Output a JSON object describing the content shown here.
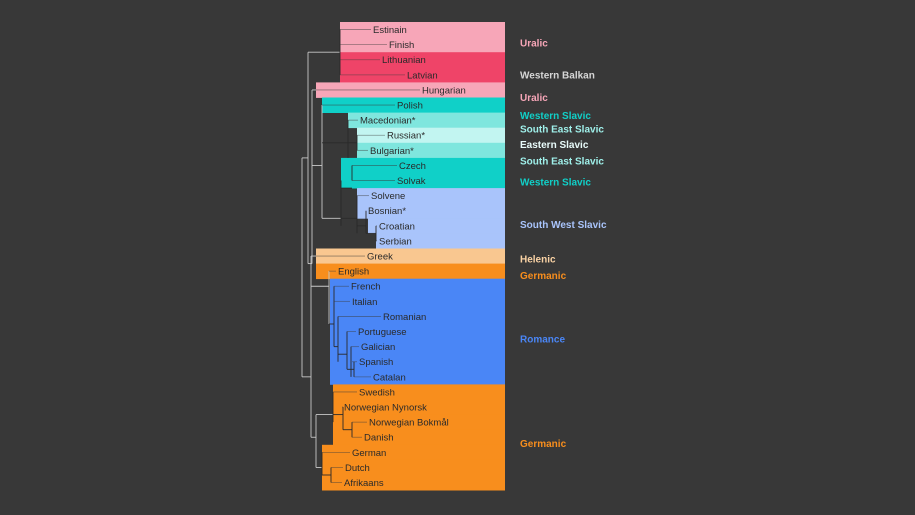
{
  "leaves": [
    {
      "name": "Estinain",
      "color": "#f7a6b8"
    },
    {
      "name": "Finish",
      "color": "#f7a6b8"
    },
    {
      "name": "Lithuanian",
      "color": "#ef4468"
    },
    {
      "name": "Latvian",
      "color": "#ef4468"
    },
    {
      "name": "Hungarian",
      "color": "#f7a6b8"
    },
    {
      "name": "Polish",
      "color": "#10d0c8"
    },
    {
      "name": "Macedonian*",
      "color": "#7fe6de"
    },
    {
      "name": "Russian*",
      "color": "#c2f5f1"
    },
    {
      "name": "Bulgarian*",
      "color": "#7fe6de"
    },
    {
      "name": "Czech",
      "color": "#10d0c8"
    },
    {
      "name": "Solvak",
      "color": "#10d0c8"
    },
    {
      "name": "Solvene",
      "color": "#a9c4fb"
    },
    {
      "name": "Bosnian*",
      "color": "#a9c4fb"
    },
    {
      "name": "Croatian",
      "color": "#a9c4fb"
    },
    {
      "name": "Serbian",
      "color": "#a9c4fb"
    },
    {
      "name": "Greek",
      "color": "#f9c790"
    },
    {
      "name": "English",
      "color": "#f88e1d"
    },
    {
      "name": "French",
      "color": "#4a86f6"
    },
    {
      "name": "Italian",
      "color": "#4a86f6"
    },
    {
      "name": "Romanian",
      "color": "#4a86f6"
    },
    {
      "name": "Portuguese",
      "color": "#4a86f6"
    },
    {
      "name": "Galician",
      "color": "#4a86f6"
    },
    {
      "name": "Spanish",
      "color": "#4a86f6"
    },
    {
      "name": "Catalan",
      "color": "#4a86f6"
    },
    {
      "name": "Swedish",
      "color": "#f88e1d"
    },
    {
      "name": "Norwegian Nynorsk",
      "color": "#f88e1d"
    },
    {
      "name": "Norwegian Bokmål",
      "color": "#f88e1d"
    },
    {
      "name": "Danish",
      "color": "#f88e1d"
    },
    {
      "name": "German",
      "color": "#f88e1d"
    },
    {
      "name": "Dutch",
      "color": "#f88e1d"
    },
    {
      "name": "Afrikaans",
      "color": "#f88e1d"
    }
  ],
  "groups": [
    {
      "label": "Uralic",
      "color": "#f7a6b8"
    },
    {
      "label": "Western Balkan",
      "color": "#d6d6d6"
    },
    {
      "label": "Uralic",
      "color": "#f7a6b8"
    },
    {
      "label": "Western Slavic",
      "color": "#10d0c8"
    },
    {
      "label": "South East Slavic",
      "color": "#9ff0ea"
    },
    {
      "label": "Eastern Slavic",
      "color": "#e8fbfa"
    },
    {
      "label": "South East Slavic",
      "color": "#9ff0ea"
    },
    {
      "label": "Western Slavic",
      "color": "#10d0c8"
    },
    {
      "label": "South West Slavic",
      "color": "#a9c4fb"
    },
    {
      "label": "Helenic",
      "color": "#f9d2a4"
    },
    {
      "label": "Germanic",
      "color": "#f88e1d"
    },
    {
      "label": "Romance",
      "color": "#4a86f6"
    },
    {
      "label": "Germanic",
      "color": "#f88e1d"
    }
  ],
  "colors": {
    "background": "#383838",
    "tree_line": "#c8c8c8",
    "dark_line": "#2a2a2a"
  }
}
